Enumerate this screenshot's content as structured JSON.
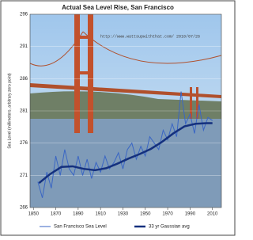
{
  "chart_data": {
    "type": "line",
    "title": "Actual Sea Level Rise, San Francisco",
    "y_label": "Sea Level (millimeters, arbitrary zero point)",
    "annotation": "http://www.wattsupwiththat.com/ 2010/07/26",
    "xlim": [
      1847,
      2018
    ],
    "xticks": [
      1850,
      1870,
      1890,
      1910,
      1930,
      1950,
      1970,
      1990,
      2010
    ],
    "ylim": [
      266,
      296
    ],
    "yticks": [
      266,
      271,
      276,
      281,
      286,
      291,
      296
    ],
    "grid": true,
    "legend": "bottom",
    "series": [
      {
        "name": "San Francisco Sea Level",
        "color": "#3a66c4",
        "width": 1,
        "x": [
          1854,
          1858,
          1862,
          1866,
          1870,
          1874,
          1878,
          1882,
          1886,
          1890,
          1894,
          1898,
          1902,
          1906,
          1910,
          1914,
          1918,
          1922,
          1926,
          1930,
          1934,
          1938,
          1942,
          1946,
          1950,
          1954,
          1958,
          1962,
          1966,
          1970,
          1974,
          1978,
          1982,
          1986,
          1990,
          1994,
          1998,
          2002,
          2006,
          2010
        ],
        "values": [
          270,
          267.5,
          271.5,
          269,
          274,
          271,
          275,
          272,
          271,
          274,
          271,
          273.5,
          270.5,
          273,
          271.5,
          274,
          272,
          273,
          274.5,
          272,
          275,
          276,
          273.5,
          275.5,
          274,
          277,
          276,
          275,
          278,
          276.5,
          279,
          277,
          284,
          279,
          280.5,
          277.5,
          282,
          278,
          280,
          279.5
        ]
      },
      {
        "name": "33 yr Gaussian avg",
        "color": "#14307e",
        "width": 2.5,
        "x": [
          1855,
          1865,
          1875,
          1885,
          1895,
          1905,
          1915,
          1925,
          1935,
          1945,
          1955,
          1965,
          1975,
          1985,
          1995,
          2005,
          2010
        ],
        "values": [
          269.8,
          271.2,
          272.3,
          272.4,
          272.0,
          271.8,
          272.1,
          272.8,
          273.6,
          274.3,
          275.1,
          276.2,
          277.5,
          278.6,
          279.0,
          279.1,
          279.1
        ]
      }
    ]
  }
}
